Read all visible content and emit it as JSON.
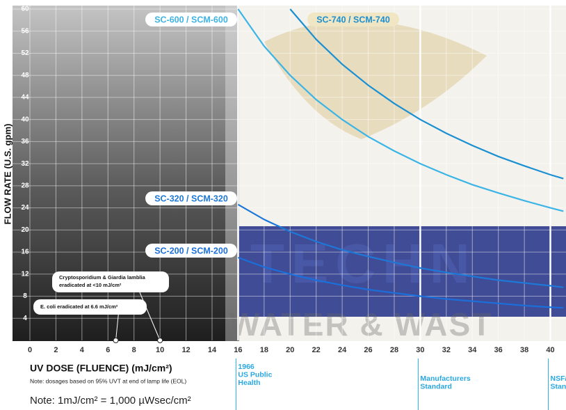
{
  "chart_data": {
    "type": "line",
    "ylabel": "FLOW RATE (U.S. gpm)",
    "xlabel": "UV DOSE (FLUENCE) (mJ/cm²)",
    "xlabel_note": "Note: dosages based on 95% UVT at end of lamp life (EOL)",
    "footnote": "Note: 1mJ/cm² = 1,000 µWsec/cm²",
    "xlim": [
      0,
      41.2
    ],
    "ylim": [
      0,
      60
    ],
    "xticks": [
      0,
      2,
      4,
      6,
      8,
      10,
      12,
      14,
      16,
      18,
      20,
      22,
      24,
      26,
      28,
      30,
      32,
      34,
      36,
      38,
      40
    ],
    "yticks": [
      4,
      8,
      12,
      16,
      20,
      24,
      28,
      32,
      36,
      40,
      44,
      48,
      52,
      56,
      60
    ],
    "grid": true,
    "series": [
      {
        "name": "SC-600 / SCM-600",
        "color": "#3bb4e6",
        "x": [
          16,
          18,
          20,
          22,
          24,
          26,
          28,
          30,
          32,
          34,
          36,
          38,
          40,
          41
        ],
        "values": [
          60,
          53.3,
          48,
          43.6,
          40,
          36.9,
          34.3,
          32,
          30,
          28.2,
          26.7,
          25.3,
          24,
          23.4
        ]
      },
      {
        "name": "SC-740 / SCM-740",
        "color": "#1a90d2",
        "x": [
          20,
          22,
          24,
          26,
          28,
          30,
          32,
          34,
          36,
          38,
          40,
          41
        ],
        "values": [
          60,
          54.5,
          50,
          46.2,
          42.9,
          40,
          37.5,
          35.3,
          33.3,
          31.6,
          30,
          29.3
        ]
      },
      {
        "name": "SC-320 / SCM-320",
        "color": "#1d78d8",
        "x": [
          16,
          18,
          20,
          22,
          24,
          26,
          28,
          30,
          32,
          34,
          36,
          38,
          40,
          41
        ],
        "values": [
          24.6,
          21.9,
          19.7,
          17.9,
          16.4,
          15.2,
          14.1,
          13.1,
          12.3,
          11.6,
          10.9,
          10.4,
          9.9,
          9.6
        ]
      },
      {
        "name": "SC-200 / SCM-200",
        "color": "#1a6fdb",
        "x": [
          16,
          18,
          20,
          22,
          24,
          26,
          28,
          30,
          32,
          34,
          36,
          38,
          40,
          41
        ],
        "values": [
          15,
          13.3,
          12,
          10.9,
          10,
          9.2,
          8.6,
          8,
          7.5,
          7.1,
          6.7,
          6.3,
          6,
          5.9
        ]
      }
    ],
    "callouts": [
      {
        "x": 10,
        "lines": [
          "Cryptosporidium & Giardia lamblia",
          "eradicated at <10 mJ/cm²"
        ]
      },
      {
        "x": 6.6,
        "lines": [
          "E. coli eradicated at 6.6 mJ/cm²"
        ]
      }
    ],
    "standards": [
      {
        "x": 16,
        "lines": [
          "1966",
          "US Public",
          "Health"
        ]
      },
      {
        "x": 30,
        "lines": [
          "Manufacturers",
          "Standard"
        ]
      },
      {
        "x": 40,
        "lines": [
          "NSF/",
          "Stan"
        ]
      }
    ],
    "watermark": [
      "TECHN",
      "WATER & WAST"
    ]
  }
}
